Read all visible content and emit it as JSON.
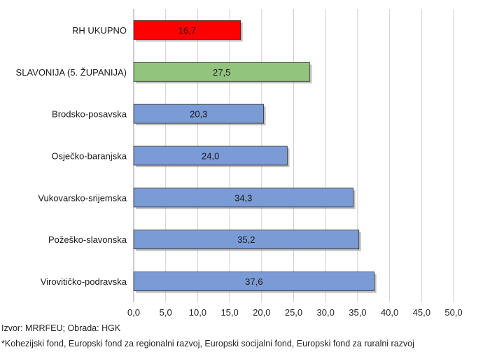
{
  "chart_data": {
    "type": "bar",
    "orientation": "horizontal",
    "categories": [
      "RH UKUPNO",
      "SLAVONIJA (5. ŽUPANIJA)",
      "Brodsko-posavska",
      "Osječko-baranjska",
      "Vukovarsko-srijemska",
      "Požeško-slavonska",
      "Virovitičko-podravska"
    ],
    "values": [
      16.7,
      27.5,
      20.3,
      24.0,
      34.3,
      35.2,
      37.6
    ],
    "value_labels": [
      "16,7",
      "27,5",
      "20,3",
      "24,0",
      "34,3",
      "35,2",
      "37,6"
    ],
    "colors": [
      "#ff0000",
      "#93c47d",
      "#7b9bd6",
      "#7b9bd6",
      "#7b9bd6",
      "#7b9bd6",
      "#7b9bd6"
    ],
    "xlim": [
      0,
      50
    ],
    "xticks": [
      "0,0",
      "5,0",
      "10,0",
      "15,0",
      "20,0",
      "25,0",
      "30,0",
      "35,0",
      "40,0",
      "45,0",
      "50,0"
    ],
    "grid": "vertical",
    "legend": "none"
  },
  "notes": {
    "source": "Izvor: MRRFEU; Obrada: HGK",
    "footnote": "*Kohezijski fond, Europski fond za regionalni razvoj, Europski socijalni fond, Europski fond za ruralni razvoj"
  }
}
